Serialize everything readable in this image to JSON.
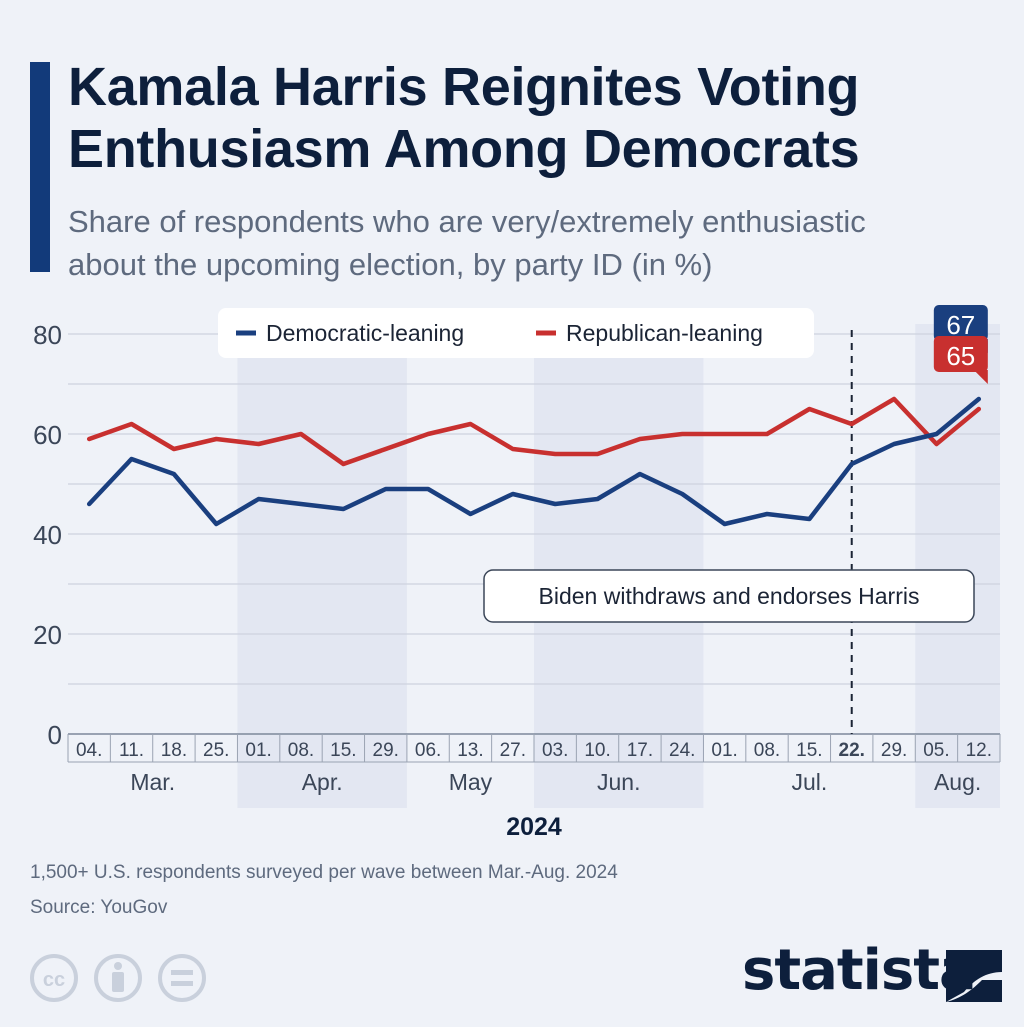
{
  "header": {
    "title_line1": "Kamala Harris Reignites Voting",
    "title_line2": "Enthusiasm Among Democrats",
    "subtitle_line1": "Share of respondents who are very/extremely enthusiastic",
    "subtitle_line2": "about the upcoming election, by party ID (in %)"
  },
  "chart_data": {
    "type": "line",
    "title": "Kamala Harris Reignites Voting Enthusiasm Among Democrats",
    "subtitle": "Share of respondents who are very/extremely enthusiastic about the upcoming election, by party ID (in %)",
    "x": [
      "04.",
      "11.",
      "18.",
      "25.",
      "01.",
      "08.",
      "15.",
      "29.",
      "06.",
      "13.",
      "27.",
      "03.",
      "10.",
      "17.",
      "24.",
      "01.",
      "08.",
      "15.",
      "22.",
      "29.",
      "05.",
      "12."
    ],
    "x_bold_index": 18,
    "months": [
      {
        "label": "Mar.",
        "start": 0,
        "end": 3,
        "shaded": false
      },
      {
        "label": "Apr.",
        "start": 4,
        "end": 7,
        "shaded": true
      },
      {
        "label": "May",
        "start": 8,
        "end": 10,
        "shaded": false
      },
      {
        "label": "Jun.",
        "start": 11,
        "end": 14,
        "shaded": true
      },
      {
        "label": "Jul.",
        "start": 15,
        "end": 19,
        "shaded": false
      },
      {
        "label": "Aug.",
        "start": 20,
        "end": 21,
        "shaded": true
      }
    ],
    "year_label": "2024",
    "series": [
      {
        "name": "Democratic-leaning",
        "color": "#1a3f7f",
        "values": [
          46,
          55,
          52,
          42,
          47,
          46,
          45,
          49,
          49,
          44,
          48,
          46,
          47,
          52,
          48,
          42,
          44,
          43,
          54,
          58,
          60,
          67
        ]
      },
      {
        "name": "Republican-leaning",
        "color": "#c8302f",
        "values": [
          59,
          62,
          57,
          59,
          58,
          60,
          54,
          57,
          60,
          62,
          57,
          56,
          56,
          59,
          60,
          60,
          60,
          65,
          62,
          67,
          58,
          65
        ]
      }
    ],
    "end_labels": [
      "67",
      "65"
    ],
    "ylim": [
      0,
      80
    ],
    "yticks": [
      0,
      20,
      40,
      60,
      80
    ],
    "grid": true,
    "legend": "top",
    "annotation": {
      "text": "Biden withdraws and endorses Harris",
      "x_index": 18
    }
  },
  "footer": {
    "note": "1,500+ U.S. respondents surveyed per wave between Mar.-Aug. 2024",
    "source": "Source: YouGov",
    "logo_text": "statista"
  }
}
